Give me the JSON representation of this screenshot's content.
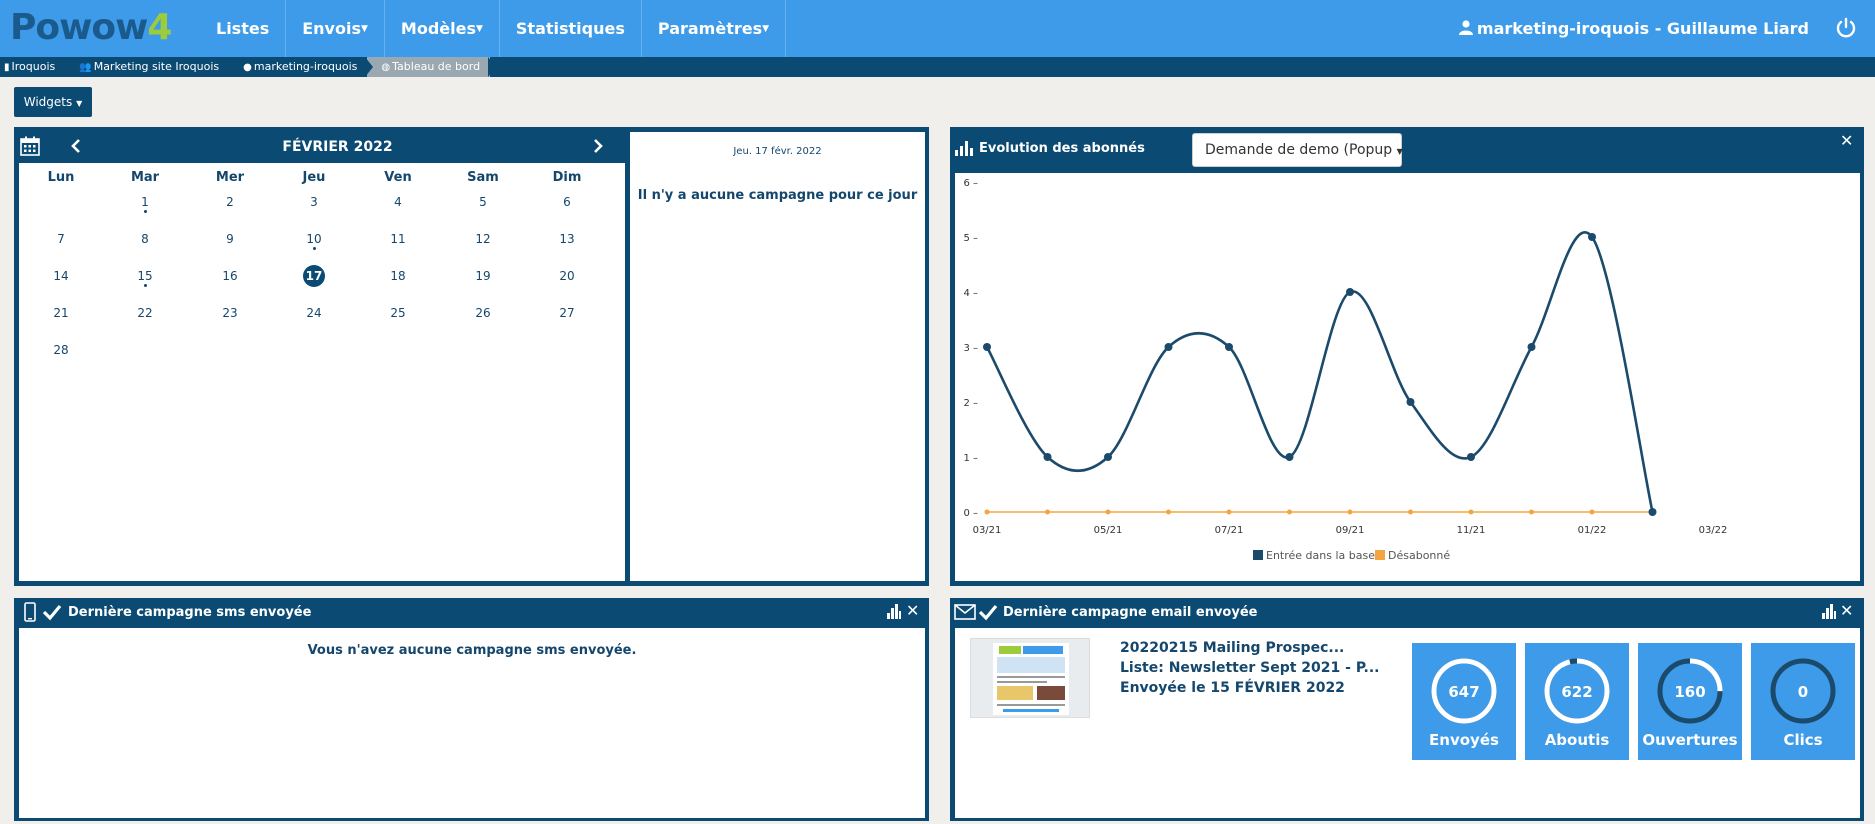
{
  "app": {
    "logo_main": "Powow",
    "logo_num": "4"
  },
  "nav": {
    "items": [
      {
        "label": "Listes",
        "caret": false
      },
      {
        "label": "Envois",
        "caret": true
      },
      {
        "label": "Modèles",
        "caret": true
      },
      {
        "label": "Statistiques",
        "caret": false
      },
      {
        "label": "Paramètres",
        "caret": true
      }
    ],
    "user": "marketing-iroquois - Guillaume Liard"
  },
  "breadcrumb": [
    "Iroquois",
    "Marketing site Iroquois",
    "marketing-iroquois",
    "Tableau de bord"
  ],
  "widgets_label": "Widgets",
  "calendar": {
    "month": "FÉVRIER 2022",
    "day_names": [
      "Lun",
      "Mar",
      "Mer",
      "Jeu",
      "Ven",
      "Sam",
      "Dim"
    ],
    "selected": 17,
    "dotted": [
      1,
      10,
      15
    ],
    "detail_date": "Jeu. 17 févr. 2022",
    "detail_msg": "Il n'y a aucune campagne pour ce jour"
  },
  "subscribers": {
    "title": "Evolution des abonnés",
    "dropdown": "Demande de demo (Popup"
  },
  "chart_data": {
    "type": "line",
    "x_tick_labels": [
      "03/21",
      "05/21",
      "07/21",
      "09/21",
      "11/21",
      "01/22",
      "03/22"
    ],
    "x": [
      "03/21",
      "04/21",
      "05/21",
      "06/21",
      "07/21",
      "08/21",
      "09/21",
      "10/21",
      "11/21",
      "12/21",
      "01/22",
      "02/22"
    ],
    "series": [
      {
        "name": "Entrée dans la base",
        "color": "#1b4a6b",
        "values": [
          3,
          1,
          1,
          3,
          3,
          1,
          4,
          2,
          1,
          3,
          5,
          0
        ]
      },
      {
        "name": "Désabonné",
        "color": "#f5a540",
        "values": [
          0,
          0,
          0,
          0,
          0,
          0,
          0,
          0,
          0,
          0,
          0,
          0
        ]
      }
    ],
    "y_ticks": [
      0,
      1,
      2,
      3,
      4,
      5,
      6
    ],
    "ylim": [
      0,
      6
    ],
    "legend": "bottom"
  },
  "sms": {
    "title": "Dernière campagne sms envoyée",
    "message": "Vous n'avez aucune campagne sms envoyée."
  },
  "email": {
    "title": "Dernière campagne email envoyée",
    "name": "20220215 Mailing Prospec...",
    "list": "Liste: Newsletter Sept 2021 - P...",
    "sent": "Envoyée le 15 FÉVRIER 2022",
    "stats": [
      {
        "label": "Envoyés",
        "value": "647",
        "fraction": 1.0
      },
      {
        "label": "Aboutis",
        "value": "622",
        "fraction": 0.96
      },
      {
        "label": "Ouvertures",
        "value": "160",
        "fraction": 0.25
      },
      {
        "label": "Clics",
        "value": "0",
        "fraction": 0.0
      }
    ]
  }
}
